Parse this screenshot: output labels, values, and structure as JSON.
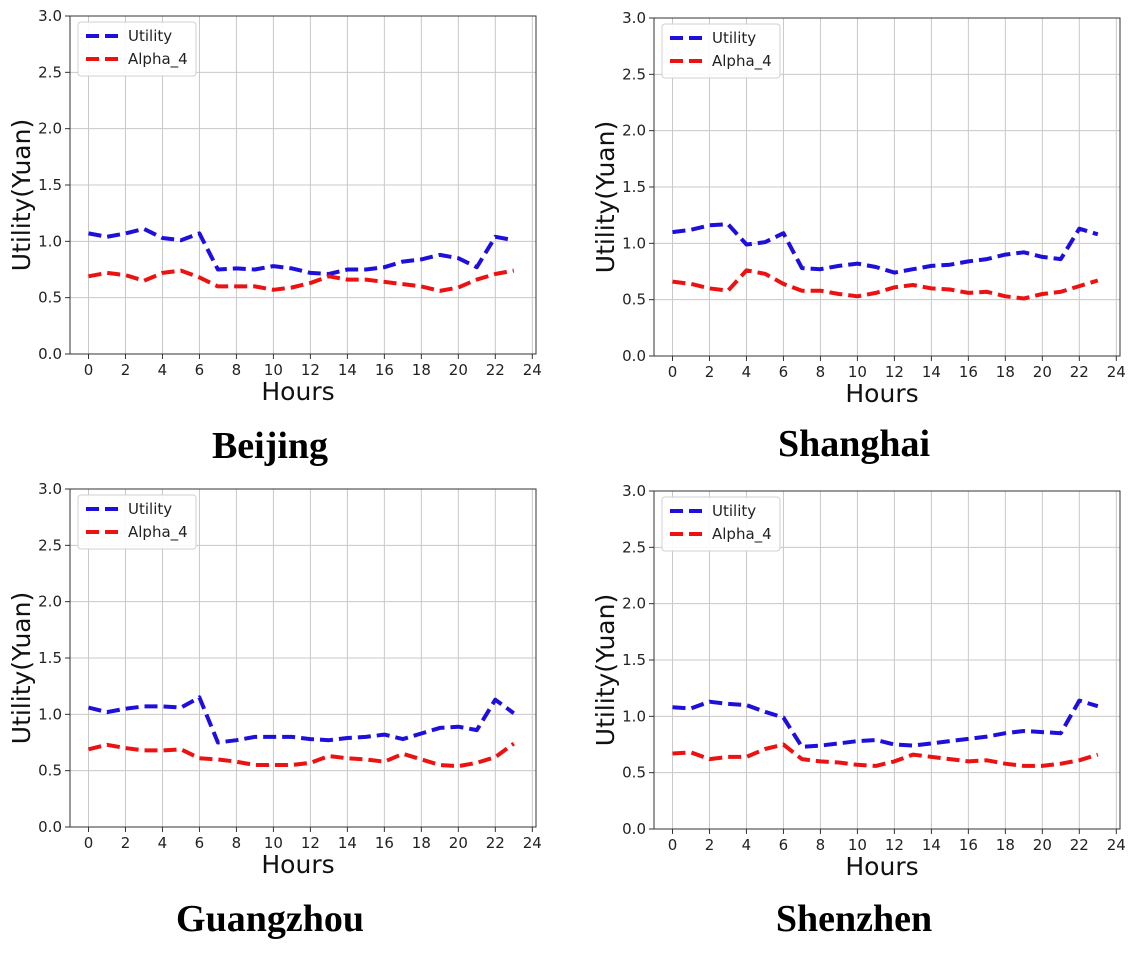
{
  "chart_data": [
    {
      "type": "line",
      "caption": "Beijing",
      "xlabel": "Hours",
      "ylabel": "Utility(Yuan)",
      "xlim": [
        -1,
        24.2
      ],
      "ylim": [
        0,
        3.0
      ],
      "xticks": [
        0,
        2,
        4,
        6,
        8,
        10,
        12,
        14,
        16,
        18,
        20,
        22,
        24
      ],
      "yticks": [
        0.0,
        0.5,
        1.0,
        1.5,
        2.0,
        2.5,
        3.0
      ],
      "grid": true,
      "legend_position": "top-left",
      "x": [
        0,
        1,
        2,
        3,
        4,
        5,
        6,
        7,
        8,
        9,
        10,
        11,
        12,
        13,
        14,
        15,
        16,
        17,
        18,
        19,
        20,
        21,
        22,
        23
      ],
      "series": [
        {
          "name": "Utility",
          "color": "#1f0fdc",
          "values": [
            1.07,
            1.04,
            1.07,
            1.11,
            1.03,
            1.01,
            1.07,
            0.75,
            0.76,
            0.75,
            0.78,
            0.76,
            0.72,
            0.71,
            0.75,
            0.75,
            0.77,
            0.82,
            0.84,
            0.88,
            0.85,
            0.77,
            1.04,
            1.01
          ]
        },
        {
          "name": "Alpha_4",
          "color": "#ee1111",
          "values": [
            0.69,
            0.72,
            0.7,
            0.65,
            0.72,
            0.74,
            0.68,
            0.6,
            0.6,
            0.6,
            0.57,
            0.59,
            0.63,
            0.69,
            0.66,
            0.66,
            0.64,
            0.62,
            0.6,
            0.56,
            0.59,
            0.66,
            0.71,
            0.74
          ]
        }
      ]
    },
    {
      "type": "line",
      "caption": "Shanghai",
      "xlabel": "Hours",
      "ylabel": "Utility(Yuan)",
      "xlim": [
        -1,
        24.2
      ],
      "ylim": [
        0,
        3.0
      ],
      "xticks": [
        0,
        2,
        4,
        6,
        8,
        10,
        12,
        14,
        16,
        18,
        20,
        22,
        24
      ],
      "yticks": [
        0.0,
        0.5,
        1.0,
        1.5,
        2.0,
        2.5,
        3.0
      ],
      "grid": true,
      "legend_position": "top-left",
      "x": [
        0,
        1,
        2,
        3,
        4,
        5,
        6,
        7,
        8,
        9,
        10,
        11,
        12,
        13,
        14,
        15,
        16,
        17,
        18,
        19,
        20,
        21,
        22,
        23
      ],
      "series": [
        {
          "name": "Utility",
          "color": "#1f0fdc",
          "values": [
            1.1,
            1.12,
            1.16,
            1.17,
            0.99,
            1.01,
            1.09,
            0.78,
            0.77,
            0.8,
            0.82,
            0.79,
            0.74,
            0.77,
            0.8,
            0.81,
            0.84,
            0.86,
            0.9,
            0.92,
            0.88,
            0.86,
            1.13,
            1.08
          ]
        },
        {
          "name": "Alpha_4",
          "color": "#ee1111",
          "values": [
            0.66,
            0.64,
            0.6,
            0.58,
            0.76,
            0.73,
            0.64,
            0.58,
            0.58,
            0.55,
            0.53,
            0.56,
            0.61,
            0.63,
            0.6,
            0.59,
            0.56,
            0.57,
            0.53,
            0.51,
            0.55,
            0.57,
            0.62,
            0.67
          ]
        }
      ]
    },
    {
      "type": "line",
      "caption": "Guangzhou",
      "xlabel": "Hours",
      "ylabel": "Utility(Yuan)",
      "xlim": [
        -1,
        24.2
      ],
      "ylim": [
        0,
        3.0
      ],
      "xticks": [
        0,
        2,
        4,
        6,
        8,
        10,
        12,
        14,
        16,
        18,
        20,
        22,
        24
      ],
      "yticks": [
        0.0,
        0.5,
        1.0,
        1.5,
        2.0,
        2.5,
        3.0
      ],
      "grid": true,
      "legend_position": "top-left",
      "x": [
        0,
        1,
        2,
        3,
        4,
        5,
        6,
        7,
        8,
        9,
        10,
        11,
        12,
        13,
        14,
        15,
        16,
        17,
        18,
        19,
        20,
        21,
        22,
        23
      ],
      "series": [
        {
          "name": "Utility",
          "color": "#1f0fdc",
          "values": [
            1.06,
            1.02,
            1.05,
            1.07,
            1.07,
            1.06,
            1.15,
            0.75,
            0.77,
            0.8,
            0.8,
            0.8,
            0.78,
            0.77,
            0.79,
            0.8,
            0.82,
            0.78,
            0.83,
            0.88,
            0.89,
            0.86,
            1.13,
            1.01
          ]
        },
        {
          "name": "Alpha_4",
          "color": "#ee1111",
          "values": [
            0.69,
            0.73,
            0.7,
            0.68,
            0.68,
            0.69,
            0.61,
            0.6,
            0.58,
            0.55,
            0.55,
            0.55,
            0.57,
            0.63,
            0.61,
            0.6,
            0.58,
            0.65,
            0.6,
            0.55,
            0.54,
            0.57,
            0.62,
            0.74
          ]
        }
      ]
    },
    {
      "type": "line",
      "caption": "Shenzhen",
      "xlabel": "Hours",
      "ylabel": "Utility(Yuan)",
      "xlim": [
        -1,
        24.2
      ],
      "ylim": [
        0,
        3.0
      ],
      "xticks": [
        0,
        2,
        4,
        6,
        8,
        10,
        12,
        14,
        16,
        18,
        20,
        22,
        24
      ],
      "yticks": [
        0.0,
        0.5,
        1.0,
        1.5,
        2.0,
        2.5,
        3.0
      ],
      "grid": true,
      "legend_position": "top-left",
      "x": [
        0,
        1,
        2,
        3,
        4,
        5,
        6,
        7,
        8,
        9,
        10,
        11,
        12,
        13,
        14,
        15,
        16,
        17,
        18,
        19,
        20,
        21,
        22,
        23
      ],
      "series": [
        {
          "name": "Utility",
          "color": "#1f0fdc",
          "values": [
            1.08,
            1.07,
            1.13,
            1.11,
            1.1,
            1.04,
            0.99,
            0.73,
            0.74,
            0.76,
            0.78,
            0.79,
            0.75,
            0.74,
            0.76,
            0.78,
            0.8,
            0.82,
            0.85,
            0.87,
            0.86,
            0.85,
            1.14,
            1.09
          ]
        },
        {
          "name": "Alpha_4",
          "color": "#ee1111",
          "values": [
            0.67,
            0.68,
            0.62,
            0.64,
            0.64,
            0.71,
            0.75,
            0.62,
            0.6,
            0.59,
            0.57,
            0.56,
            0.6,
            0.66,
            0.64,
            0.62,
            0.6,
            0.61,
            0.58,
            0.56,
            0.56,
            0.58,
            0.61,
            0.66
          ]
        }
      ]
    }
  ]
}
